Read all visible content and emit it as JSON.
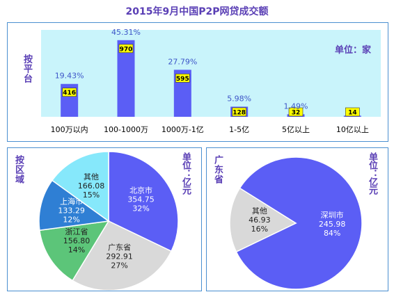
{
  "title": "2015年9月中国P2P网贷成交额",
  "chart_data": [
    {
      "type": "bar",
      "side_label": "按平台",
      "unit_label": "单位：家",
      "categories": [
        "100万以内",
        "100-1000万",
        "1000万-1亿",
        "1-5亿",
        "5亿以上",
        "10亿以上"
      ],
      "values": [
        416,
        970,
        595,
        128,
        32,
        14
      ],
      "percent_labels": [
        "19.43%",
        "45.31%",
        "27.79%",
        "5.98%",
        "1.49%",
        ""
      ],
      "ylim": [
        0,
        1100
      ],
      "colors": {
        "bar": "#5b5ef5",
        "plot_bg": "#c9f4fb",
        "value_box": "#ffff00"
      }
    },
    {
      "type": "pie",
      "side_label": "按区域",
      "unit_label": "单位：亿元",
      "slices": [
        {
          "label": "北京市",
          "value": 354.75,
          "value_text": "354.75",
          "pct": "32%",
          "color": "#5b5ef5"
        },
        {
          "label": "广东省",
          "value": 292.91,
          "value_text": "292.91",
          "pct": "27%",
          "color": "#d9d9d9"
        },
        {
          "label": "浙江省",
          "value": 156.8,
          "value_text": "156.80",
          "pct": "14%",
          "color": "#5cc579"
        },
        {
          "label": "上海市",
          "value": 133.29,
          "value_text": "133.29",
          "pct": "12%",
          "color": "#2f7fd4"
        },
        {
          "label": "其他",
          "value": 166.08,
          "value_text": "166.08",
          "pct": "15%",
          "color": "#86e8fb"
        }
      ]
    },
    {
      "type": "pie",
      "side_label": "广东省",
      "unit_label": "单位：亿元",
      "slices": [
        {
          "label": "深圳市",
          "value": 245.98,
          "value_text": "245.98",
          "pct": "84%",
          "color": "#5b5ef5"
        },
        {
          "label": "其他",
          "value": 46.93,
          "value_text": "46.93",
          "pct": "16%",
          "color": "#d9d9d9"
        }
      ]
    }
  ]
}
